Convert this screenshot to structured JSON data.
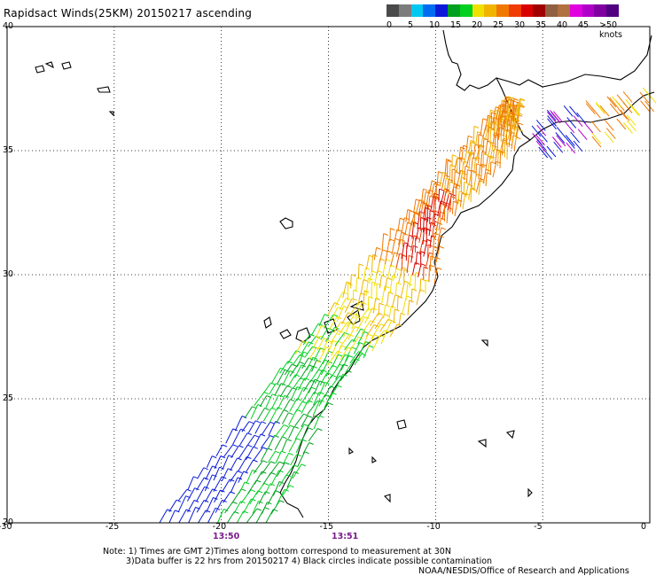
{
  "title": "Rapidsact Winds(25KM) 20150217 ascending",
  "legend": {
    "labels": [
      "0",
      "5",
      "10",
      "15",
      "20",
      "25",
      "30",
      "35",
      "40",
      "45",
      ">50 knots"
    ],
    "colors": [
      "#4a4a4a",
      "#7c7c7c",
      "#00c8f0",
      "#006cf0",
      "#0a1ad8",
      "#00a020",
      "#00d020",
      "#f0e000",
      "#f0b400",
      "#f07800",
      "#f03c00",
      "#d80000",
      "#a00000",
      "#906040",
      "#b07040",
      "#e000e0",
      "#b000c8",
      "#8000a0",
      "#500080"
    ]
  },
  "map": {
    "lon_range": [
      -30,
      0
    ],
    "lat_range": [
      20,
      40
    ],
    "x_ticks": [
      "-30",
      "-25",
      "-20",
      "-15",
      "-10",
      "-5",
      "0"
    ],
    "y_ticks": [
      "40",
      "35",
      "30",
      "25",
      "20"
    ],
    "grid": "dotted"
  },
  "times": [
    "13:50",
    "13:51"
  ],
  "notes": [
    "Note: 1) Times are GMT 2)Times along bottom correspond to measurement at 30N",
    "3)Data buffer is 22 hrs from 20150217 4) Black circles indicate possible contamination",
    "NOAA/NESDIS/Office of Research and Applications"
  ]
}
